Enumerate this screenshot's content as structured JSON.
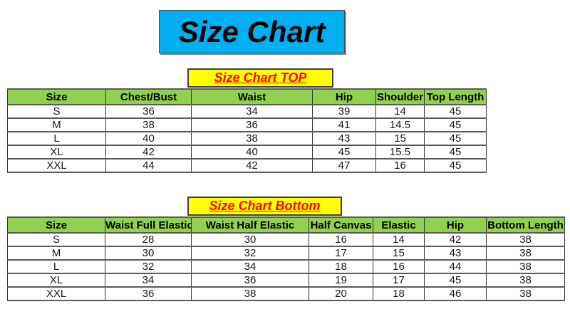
{
  "title": {
    "text": "Size Chart",
    "bg_color": "#00b0f0",
    "text_color": "#000000"
  },
  "sections": {
    "top": {
      "label": "Size Chart TOP",
      "bg_color": "#ffff00",
      "text_color": "#ff0000"
    },
    "bottom": {
      "label": "Size Chart Bottom",
      "bg_color": "#ffff00",
      "text_color": "#ff0000"
    }
  },
  "colors": {
    "table_header_bg": "#92d050",
    "table_border": "#404040",
    "page_bg": "#ffffff"
  },
  "top_table": {
    "headers": [
      "Size",
      "Chest/Bust",
      "Waist",
      "Hip",
      "Shoulder",
      "Top Length"
    ],
    "rows": [
      [
        "S",
        "36",
        "34",
        "39",
        "14",
        "45"
      ],
      [
        "M",
        "38",
        "36",
        "41",
        "14.5",
        "45"
      ],
      [
        "L",
        "40",
        "38",
        "43",
        "15",
        "45"
      ],
      [
        "XL",
        "42",
        "40",
        "45",
        "15.5",
        "45"
      ],
      [
        "XXL",
        "44",
        "42",
        "47",
        "16",
        "45"
      ]
    ]
  },
  "bottom_table": {
    "headers": [
      "Size",
      "Waist Full Elastic",
      "Waist Half Elastic",
      "Half Canvas",
      "Elastic",
      "Hip",
      "Bottom Length"
    ],
    "rows": [
      [
        "S",
        "28",
        "30",
        "16",
        "14",
        "42",
        "38"
      ],
      [
        "M",
        "30",
        "32",
        "17",
        "15",
        "43",
        "38"
      ],
      [
        "L",
        "32",
        "34",
        "18",
        "16",
        "44",
        "38"
      ],
      [
        "XL",
        "34",
        "36",
        "19",
        "17",
        "45",
        "38"
      ],
      [
        "XXL",
        "36",
        "38",
        "20",
        "18",
        "46",
        "38"
      ]
    ]
  }
}
